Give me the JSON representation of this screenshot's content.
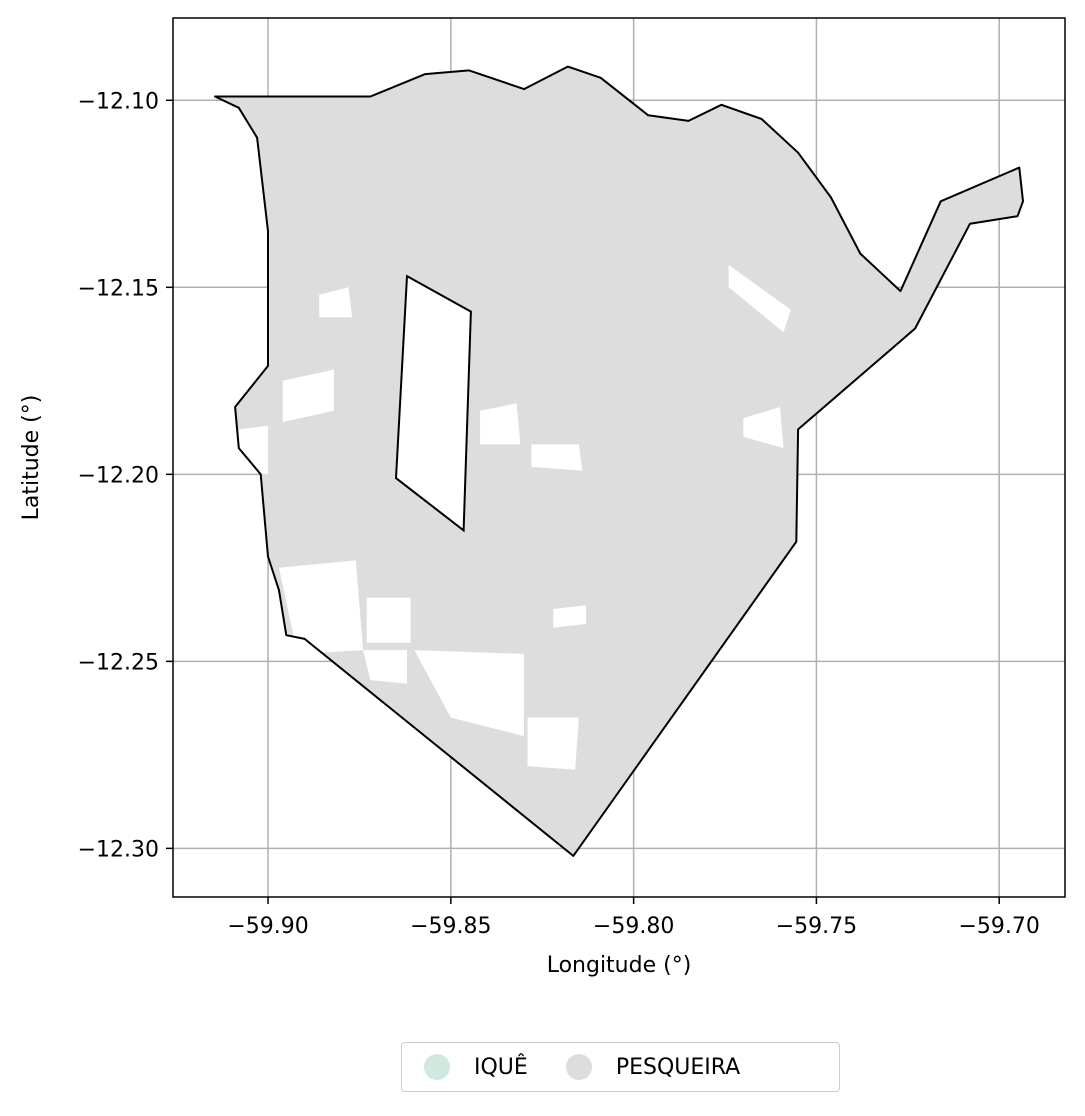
{
  "chart_data": {
    "type": "map",
    "title": "",
    "xlabel": "Longitude (°)",
    "ylabel": "Latitude (°)",
    "xlim": [
      -59.926,
      -59.682
    ],
    "ylim": [
      -12.313,
      -12.078
    ],
    "xticks": [
      -59.9,
      -59.85,
      -59.8,
      -59.75,
      -59.7
    ],
    "yticks": [
      -12.1,
      -12.15,
      -12.2,
      -12.25,
      -12.3
    ],
    "xtick_labels": [
      "−59.90",
      "−59.85",
      "−59.80",
      "−59.75",
      "−59.70"
    ],
    "ytick_labels": [
      "−12.10",
      "−12.15",
      "−12.20",
      "−12.25",
      "−12.30"
    ],
    "grid": true,
    "legend_placement": "bottom-center",
    "legend": [
      {
        "label": "IQUÊ",
        "color": "#cfe9dc"
      },
      {
        "label": "PESQUEIRA",
        "color": "#dddddd"
      }
    ],
    "outline": [
      [
        -59.9145,
        -12.099
      ],
      [
        -59.894,
        -12.099
      ],
      [
        -59.872,
        -12.099
      ],
      [
        -59.857,
        -12.093
      ],
      [
        -59.845,
        -12.092
      ],
      [
        -59.83,
        -12.097
      ],
      [
        -59.818,
        -12.091
      ],
      [
        -59.809,
        -12.094
      ],
      [
        -59.796,
        -12.104
      ],
      [
        -59.785,
        -12.1055
      ],
      [
        -59.776,
        -12.1012
      ],
      [
        -59.765,
        -12.105
      ],
      [
        -59.755,
        -12.114
      ],
      [
        -59.746,
        -12.126
      ],
      [
        -59.738,
        -12.141
      ],
      [
        -59.727,
        -12.151
      ],
      [
        -59.716,
        -12.127
      ],
      [
        -59.6945,
        -12.118
      ],
      [
        -59.6935,
        -12.127
      ],
      [
        -59.695,
        -12.131
      ],
      [
        -59.708,
        -12.133
      ],
      [
        -59.723,
        -12.161
      ],
      [
        -59.755,
        -12.188
      ],
      [
        -59.7555,
        -12.218
      ],
      [
        -59.8165,
        -12.302
      ],
      [
        -59.89,
        -12.244
      ],
      [
        -59.895,
        -12.243
      ],
      [
        -59.897,
        -12.231
      ],
      [
        -59.9,
        -12.222
      ],
      [
        -59.902,
        -12.2
      ],
      [
        -59.908,
        -12.193
      ],
      [
        -59.909,
        -12.182
      ],
      [
        -59.9,
        -12.171
      ],
      [
        -59.9,
        -12.16
      ],
      [
        -59.9,
        -12.135
      ],
      [
        -59.903,
        -12.11
      ],
      [
        -59.908,
        -12.102
      ],
      [
        -59.9145,
        -12.099
      ]
    ],
    "iq_polygon": [
      [
        -59.862,
        -12.147
      ],
      [
        -59.8445,
        -12.1565
      ],
      [
        -59.8465,
        -12.215
      ],
      [
        -59.865,
        -12.201
      ],
      [
        -59.862,
        -12.147
      ]
    ],
    "holes": [
      [
        [
          -59.886,
          -12.152
        ],
        [
          -59.878,
          -12.15
        ],
        [
          -59.877,
          -12.158
        ],
        [
          -59.886,
          -12.158
        ]
      ],
      [
        [
          -59.896,
          -12.175
        ],
        [
          -59.882,
          -12.172
        ],
        [
          -59.882,
          -12.183
        ],
        [
          -59.896,
          -12.186
        ]
      ],
      [
        [
          -59.908,
          -12.188
        ],
        [
          -59.9,
          -12.187
        ],
        [
          -59.9,
          -12.2
        ],
        [
          -59.908,
          -12.199
        ]
      ],
      [
        [
          -59.842,
          -12.183
        ],
        [
          -59.832,
          -12.181
        ],
        [
          -59.831,
          -12.192
        ],
        [
          -59.842,
          -12.192
        ]
      ],
      [
        [
          -59.828,
          -12.192
        ],
        [
          -59.815,
          -12.192
        ],
        [
          -59.814,
          -12.199
        ],
        [
          -59.828,
          -12.198
        ]
      ],
      [
        [
          -59.77,
          -12.185
        ],
        [
          -59.76,
          -12.182
        ],
        [
          -59.759,
          -12.193
        ],
        [
          -59.77,
          -12.19
        ]
      ],
      [
        [
          -59.774,
          -12.144
        ],
        [
          -59.757,
          -12.156
        ],
        [
          -59.759,
          -12.162
        ],
        [
          -59.774,
          -12.15
        ]
      ],
      [
        [
          -59.897,
          -12.225
        ],
        [
          -59.876,
          -12.223
        ],
        [
          -59.874,
          -12.247
        ],
        [
          -59.892,
          -12.248
        ]
      ],
      [
        [
          -59.873,
          -12.233
        ],
        [
          -59.861,
          -12.233
        ],
        [
          -59.861,
          -12.245
        ],
        [
          -59.873,
          -12.245
        ]
      ],
      [
        [
          -59.86,
          -12.247
        ],
        [
          -59.83,
          -12.248
        ],
        [
          -59.83,
          -12.27
        ],
        [
          -59.85,
          -12.265
        ]
      ],
      [
        [
          -59.829,
          -12.265
        ],
        [
          -59.815,
          -12.265
        ],
        [
          -59.816,
          -12.279
        ],
        [
          -59.829,
          -12.278
        ]
      ],
      [
        [
          -59.874,
          -12.247
        ],
        [
          -59.862,
          -12.247
        ],
        [
          -59.862,
          -12.256
        ],
        [
          -59.872,
          -12.255
        ]
      ],
      [
        [
          -59.822,
          -12.236
        ],
        [
          -59.813,
          -12.235
        ],
        [
          -59.813,
          -12.24
        ],
        [
          -59.822,
          -12.241
        ]
      ]
    ]
  }
}
